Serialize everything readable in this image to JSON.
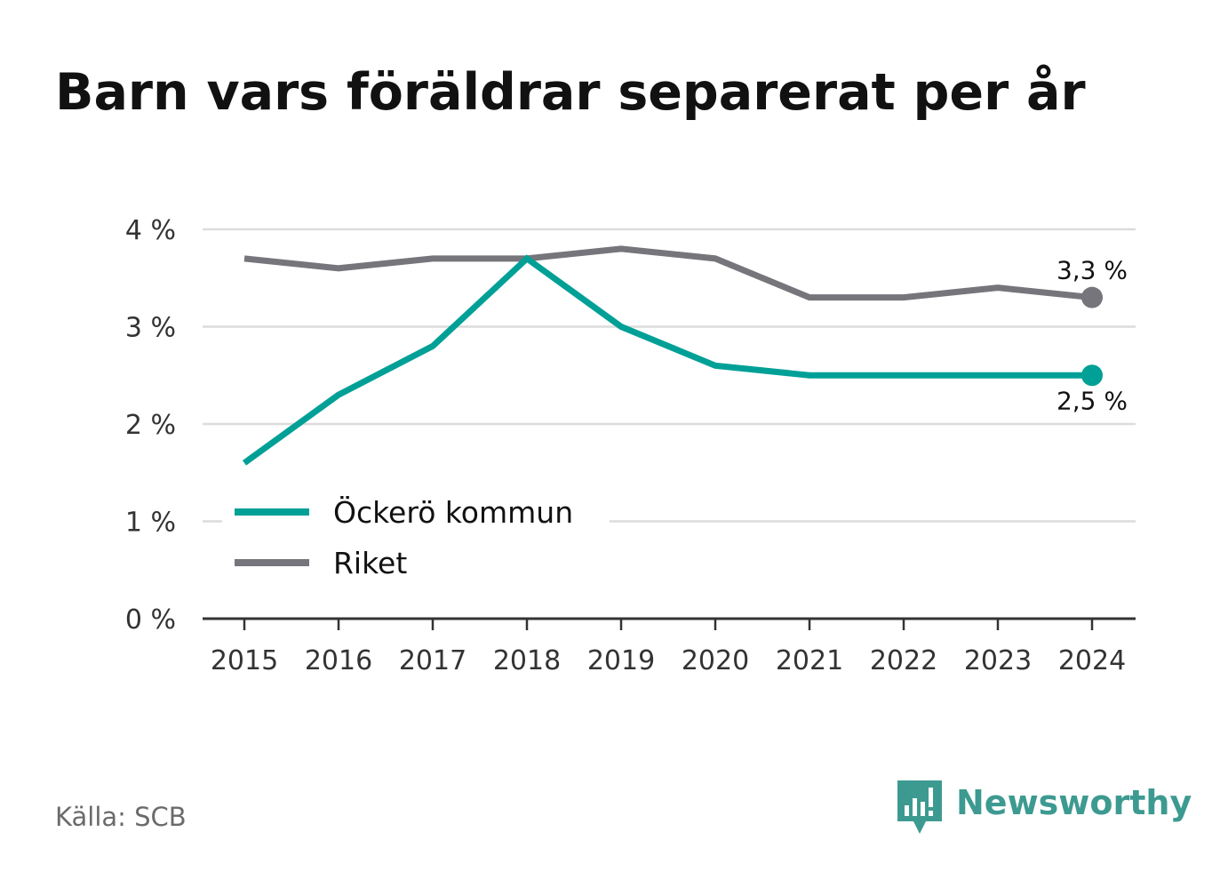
{
  "page": {
    "title": "Barn vars föräldrar separerat per år",
    "source": "Källa: SCB"
  },
  "brand": {
    "name": "Newsworthy",
    "logo_icon": "newsworthy-bar-chart-speech-bubble-icon",
    "color": "#3d9a91"
  },
  "chart_data": {
    "type": "line",
    "title": "Barn vars föräldrar separerat per år",
    "x": [
      2015,
      2016,
      2017,
      2018,
      2019,
      2020,
      2021,
      2022,
      2023,
      2024
    ],
    "x_tick_labels": [
      "2015",
      "2016",
      "2017",
      "2018",
      "2019",
      "2020",
      "2021",
      "2022",
      "2023",
      "2024"
    ],
    "ylim": [
      0,
      4
    ],
    "y_ticks": [
      0,
      1,
      2,
      3,
      4
    ],
    "y_tick_labels": [
      "0 %",
      "1 %",
      "2 %",
      "3 %",
      "4 %"
    ],
    "xlabel": "",
    "ylabel": "",
    "grid": true,
    "legend_position": "lower-left",
    "series": [
      {
        "name": "Öckerö kommun",
        "color": "#00a097",
        "values": [
          1.6,
          2.3,
          2.8,
          3.7,
          3.0,
          2.6,
          2.5,
          2.5,
          2.5,
          2.5
        ],
        "end_label": "2,5 %",
        "end_label_position": "below"
      },
      {
        "name": "Riket",
        "color": "#76757b",
        "values": [
          3.7,
          3.6,
          3.7,
          3.7,
          3.8,
          3.7,
          3.3,
          3.3,
          3.4,
          3.3
        ],
        "end_label": "3,3 %",
        "end_label_position": "above"
      }
    ],
    "colors": {
      "gridline": "#dcdcdc",
      "axis": "#333333",
      "tick_label": "#333333",
      "data_label": "#111111",
      "legend_label": "#111111"
    }
  }
}
